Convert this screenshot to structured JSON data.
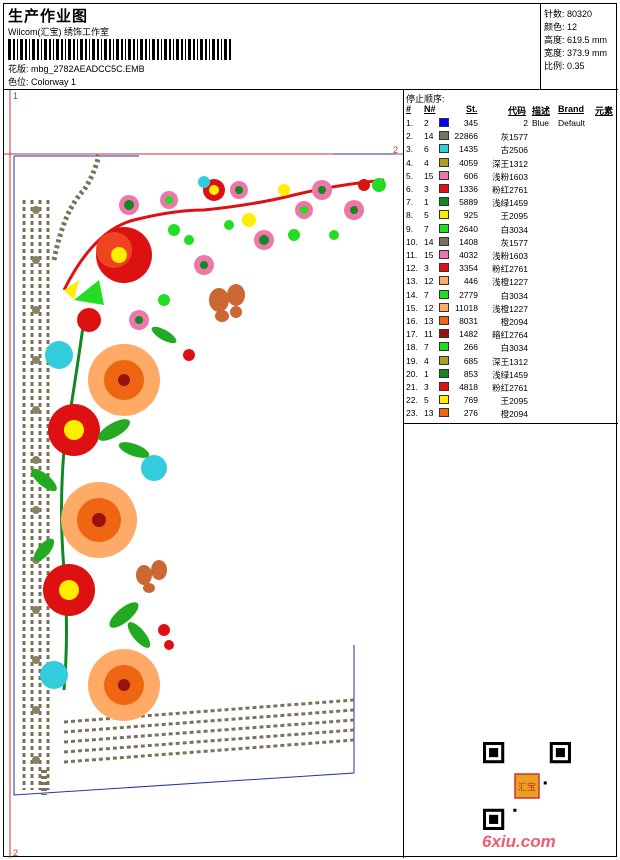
{
  "header": {
    "title": "生产作业图",
    "company": "Wilcom(汇宝) 绣饰工作室",
    "design_label": "花版:",
    "design_value": "mbg_2782AEADCC5C.EMB",
    "colorway_label": "色位:",
    "colorway_value": "Colorway 1"
  },
  "stats": [
    {
      "label": "针数:",
      "value": "80320"
    },
    {
      "label": "颜色:",
      "value": "12"
    },
    {
      "label": "高度:",
      "value": "619.5 mm"
    },
    {
      "label": "宽度:",
      "value": "373.9 mm"
    },
    {
      "label": "比例:",
      "value": "0.35"
    }
  ],
  "design_markers": {
    "one": "1",
    "two": "2"
  },
  "stop_sequence": {
    "title": "停止顺序:",
    "columns": [
      "#",
      "N#",
      "St.",
      "代码",
      "描述",
      "Brand",
      "元素"
    ],
    "rows": [
      {
        "idx": "1.",
        "n": "2",
        "color": "#0000ff",
        "st": "345",
        "code": "2",
        "desc": "Blue",
        "brand": "Default"
      },
      {
        "idx": "2.",
        "n": "14",
        "color": "#7a7060",
        "st": "22866",
        "code": "灰1577",
        "desc": "",
        "brand": ""
      },
      {
        "idx": "3.",
        "n": "6",
        "color": "#33ccdd",
        "st": "1435",
        "code": "古2506",
        "desc": "",
        "brand": ""
      },
      {
        "idx": "4.",
        "n": "4",
        "color": "#b0a020",
        "st": "4059",
        "code": "深王1312",
        "desc": "",
        "brand": ""
      },
      {
        "idx": "5.",
        "n": "15",
        "color": "#ee77aa",
        "st": "606",
        "code": "浅粉1603",
        "desc": "",
        "brand": ""
      },
      {
        "idx": "6.",
        "n": "3",
        "color": "#dd1111",
        "st": "1336",
        "code": "粉红2761",
        "desc": "",
        "brand": ""
      },
      {
        "idx": "7.",
        "n": "1",
        "color": "#118822",
        "st": "5889",
        "code": "浅绿1459",
        "desc": "",
        "brand": ""
      },
      {
        "idx": "8.",
        "n": "5",
        "color": "#ffee00",
        "st": "925",
        "code": "王2095",
        "desc": "",
        "brand": ""
      },
      {
        "idx": "9.",
        "n": "7",
        "color": "#22dd22",
        "st": "2640",
        "code": "白3034",
        "desc": "",
        "brand": ""
      },
      {
        "idx": "10.",
        "n": "14",
        "color": "#7a7060",
        "st": "1408",
        "code": "灰1577",
        "desc": "",
        "brand": ""
      },
      {
        "idx": "11.",
        "n": "15",
        "color": "#ee77aa",
        "st": "4032",
        "code": "浅粉1603",
        "desc": "",
        "brand": ""
      },
      {
        "idx": "12.",
        "n": "3",
        "color": "#dd1111",
        "st": "3354",
        "code": "粉红2761",
        "desc": "",
        "brand": ""
      },
      {
        "idx": "13.",
        "n": "12",
        "color": "#ffaa66",
        "st": "446",
        "code": "浅橙1227",
        "desc": "",
        "brand": ""
      },
      {
        "idx": "14.",
        "n": "7",
        "color": "#22dd22",
        "st": "2779",
        "code": "白3034",
        "desc": "",
        "brand": ""
      },
      {
        "idx": "15.",
        "n": "12",
        "color": "#ffaa66",
        "st": "11018",
        "code": "浅橙1227",
        "desc": "",
        "brand": ""
      },
      {
        "idx": "16.",
        "n": "13",
        "color": "#ee6611",
        "st": "8031",
        "code": "橙2094",
        "desc": "",
        "brand": ""
      },
      {
        "idx": "17.",
        "n": "11",
        "color": "#991111",
        "st": "1482",
        "code": "暗红2764",
        "desc": "",
        "brand": ""
      },
      {
        "idx": "18.",
        "n": "7",
        "color": "#22dd22",
        "st": "266",
        "code": "白3034",
        "desc": "",
        "brand": ""
      },
      {
        "idx": "19.",
        "n": "4",
        "color": "#b0a020",
        "st": "685",
        "code": "深王1312",
        "desc": "",
        "brand": ""
      },
      {
        "idx": "20.",
        "n": "1",
        "color": "#118822",
        "st": "853",
        "code": "浅绿1459",
        "desc": "",
        "brand": ""
      },
      {
        "idx": "21.",
        "n": "3",
        "color": "#dd1111",
        "st": "4818",
        "code": "粉红2761",
        "desc": "",
        "brand": ""
      },
      {
        "idx": "22.",
        "n": "5",
        "color": "#ffee00",
        "st": "769",
        "code": "王2095",
        "desc": "",
        "brand": ""
      },
      {
        "idx": "23.",
        "n": "13",
        "color": "#ee6611",
        "st": "276",
        "code": "橙2094",
        "desc": "",
        "brand": ""
      }
    ]
  },
  "watermark": "6xiu.com",
  "seal_text": "汇宝"
}
